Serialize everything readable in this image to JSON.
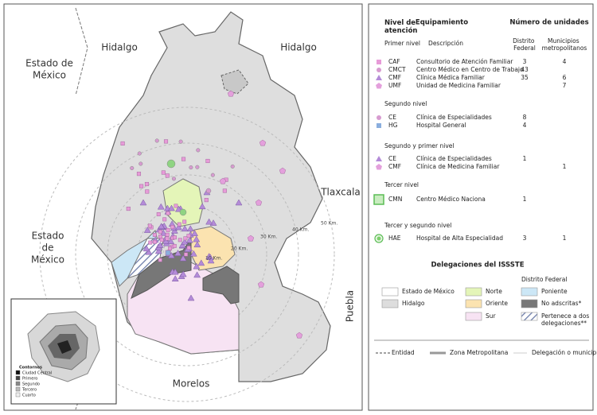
{
  "map": {
    "labels": [
      [
        "Hidalgo"
      ],
      [
        "Hidalgo"
      ],
      [
        "Estado de",
        "México"
      ],
      [
        "Tlaxcala"
      ],
      [
        "Estado",
        "de",
        "México"
      ],
      [
        "Puebla"
      ],
      [
        "Morelos"
      ]
    ],
    "distances": [
      "10 Km.",
      "20 Km.",
      "30 Km.",
      "40 Km.",
      "50 Km."
    ],
    "inset": {
      "title": "Contornos",
      "items": [
        "Ciudad Central",
        "Primero",
        "Segundo",
        "Tercero",
        "Cuarto"
      ]
    }
  },
  "legend": {
    "headers": {
      "level": "Nivel de atención",
      "equipment": "Equipamiento",
      "units": "Número de unidades",
      "description": "Descripción",
      "df": "Distrito Federal",
      "mun": "Municipios metropolitanos"
    },
    "sections": [
      {
        "title": "Primer nivel",
        "rows": [
          {
            "code": "CAF",
            "description": "Consultorio de Atención Familiar",
            "df": "3",
            "mun": "4"
          },
          {
            "code": "CMCT",
            "description": "Centro Médico en Centro de Trabajo",
            "df": "43"
          },
          {
            "code": "CMF",
            "description": "Clínica Médica Familiar",
            "df": "35",
            "mun": "6"
          },
          {
            "code": "UMF",
            "description": "Unidad de Medicina Familiar",
            "mun": "7"
          }
        ]
      },
      {
        "title": "Segundo nivel",
        "rows": [
          {
            "code": "CE",
            "description": "Clínica de Especialidades",
            "df": "8"
          },
          {
            "code": "HG",
            "description": "Hospital General",
            "df": "4"
          }
        ]
      },
      {
        "title": "Segundo y primer nivel",
        "rows": [
          {
            "code": "CE",
            "description": "Clínica de Especialidades",
            "df": "1"
          },
          {
            "code": "CMF",
            "description": "Clínica de Medicina Familiar",
            "mun": "1"
          }
        ]
      },
      {
        "title": "Tercer nivel",
        "rows": [
          {
            "code": "CMN",
            "description": "Centro Médico Naciona",
            "df": "1"
          }
        ]
      },
      {
        "title": "Tercer y segundo nivel",
        "rows": [
          {
            "code": "HAE",
            "description": "Hospital de Alta Especialidad",
            "df": "3",
            "mun": "1"
          }
        ]
      }
    ]
  },
  "delegations": {
    "title": "Delegaciones del ISSSTE",
    "subtitle": "Distrito Federal",
    "items": [
      "Estado de México",
      "Hidalgo",
      "Norte",
      "Oriente",
      "Sur",
      "Poniente",
      "No adscritas*",
      "Pertenece a dos delegaciones**"
    ],
    "lines": [
      "Entidad",
      "Zona Metropolitana",
      "Delegación o municipio"
    ]
  }
}
